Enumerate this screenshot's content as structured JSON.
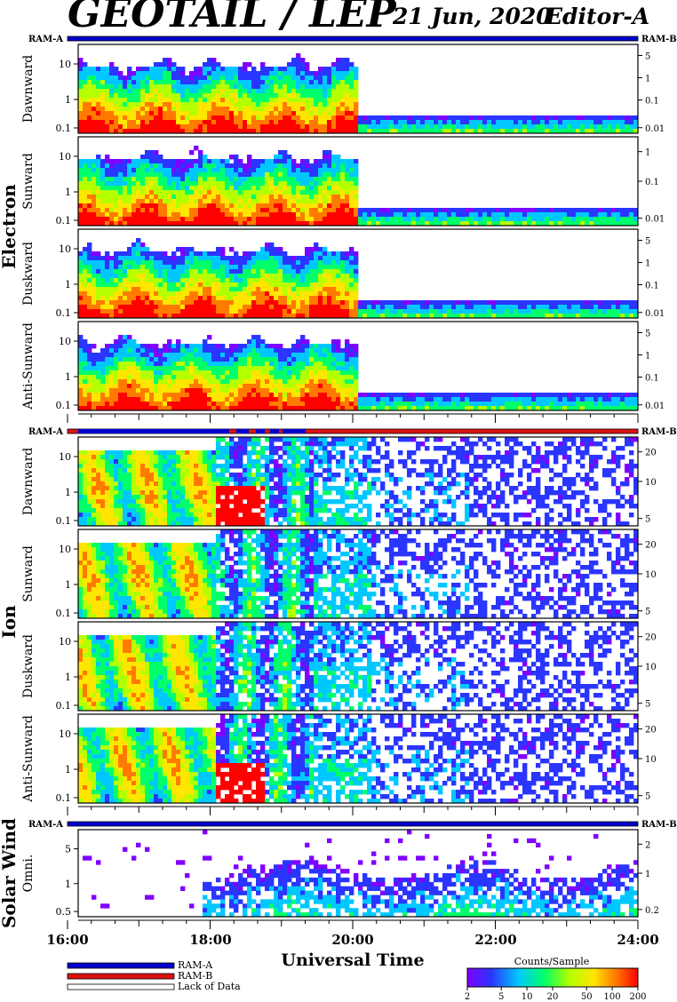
{
  "header": {
    "title": "GEOTAIL / LEP",
    "date": "21 Jun, 2020",
    "editor": "Editor-A"
  },
  "colors": {
    "ram_a": "#0000cc",
    "ram_b": "#dd1111",
    "lack": "#ffffff",
    "frame": "#000000",
    "spectrogram_scale": [
      "#7f00ff",
      "#2a36ff",
      "#00c8ff",
      "#00ff6a",
      "#b4ff00",
      "#ffe600",
      "#ff7a00",
      "#ff0000"
    ]
  },
  "groups": [
    {
      "label": "Electron"
    },
    {
      "label": "Ion"
    },
    {
      "label": "Solar Wind"
    }
  ],
  "ram": {
    "left_label": "RAM-A",
    "right_label": "RAM-B"
  },
  "axis": {
    "xlabel": "Universal Time",
    "x_ticks": [
      "16:00",
      "18:00",
      "20:00",
      "22:00",
      "24:00"
    ]
  },
  "legend": {
    "items": [
      "RAM-A",
      "RAM-B",
      "Lack of Data"
    ]
  },
  "colorbar": {
    "title": "Counts/Sample",
    "ticks": [
      "2",
      "5",
      "10",
      "20",
      "50",
      "100",
      "200"
    ]
  },
  "chart_data": [
    {
      "type": "heatmap",
      "group": "Electron",
      "panel": "Dawnward",
      "left_ticks": [
        "10",
        "1",
        "0.1"
      ],
      "right_ticks": [
        "5",
        "1",
        "0.1",
        "0.01"
      ],
      "x_range": [
        "16:00",
        "24:00"
      ],
      "scale": "log"
    },
    {
      "type": "heatmap",
      "group": "Electron",
      "panel": "Sunward",
      "left_ticks": [
        "10",
        "1",
        "0.1"
      ],
      "right_ticks": [
        "1",
        "0.1",
        "0.01"
      ],
      "x_range": [
        "16:00",
        "24:00"
      ],
      "scale": "log"
    },
    {
      "type": "heatmap",
      "group": "Electron",
      "panel": "Duskward",
      "left_ticks": [
        "10",
        "1",
        "0.1"
      ],
      "right_ticks": [
        "5",
        "1",
        "0.1",
        "0.01"
      ],
      "x_range": [
        "16:00",
        "24:00"
      ],
      "scale": "log"
    },
    {
      "type": "heatmap",
      "group": "Electron",
      "panel": "Anti-Sunward",
      "left_ticks": [
        "10",
        "1",
        "0.1"
      ],
      "right_ticks": [
        "5",
        "1",
        "0.1",
        "0.01"
      ],
      "x_range": [
        "16:00",
        "24:00"
      ],
      "scale": "log"
    },
    {
      "type": "heatmap",
      "group": "Ion",
      "panel": "Dawnward",
      "left_ticks": [
        "10",
        "1",
        "0.1"
      ],
      "right_ticks": [
        "20",
        "10",
        "5"
      ],
      "x_range": [
        "16:00",
        "24:00"
      ],
      "scale": "log"
    },
    {
      "type": "heatmap",
      "group": "Ion",
      "panel": "Sunward",
      "left_ticks": [
        "10",
        "1",
        "0.1"
      ],
      "right_ticks": [
        "20",
        "10",
        "5"
      ],
      "x_range": [
        "16:00",
        "24:00"
      ],
      "scale": "log"
    },
    {
      "type": "heatmap",
      "group": "Ion",
      "panel": "Duskward",
      "left_ticks": [
        "10",
        "1",
        "0.1"
      ],
      "right_ticks": [
        "20",
        "10",
        "5"
      ],
      "x_range": [
        "16:00",
        "24:00"
      ],
      "scale": "log"
    },
    {
      "type": "heatmap",
      "group": "Ion",
      "panel": "Anti-Sunward",
      "left_ticks": [
        "10",
        "1",
        "0.1"
      ],
      "right_ticks": [
        "20",
        "10",
        "5"
      ],
      "x_range": [
        "16:00",
        "24:00"
      ],
      "scale": "log"
    },
    {
      "type": "heatmap",
      "group": "Solar Wind",
      "panel": "Omni.",
      "left_ticks": [
        "5",
        "1",
        "0.5"
      ],
      "right_ticks": [
        "2",
        "1",
        "0.2"
      ],
      "x_range": [
        "16:00",
        "24:00"
      ],
      "scale": "log"
    }
  ]
}
